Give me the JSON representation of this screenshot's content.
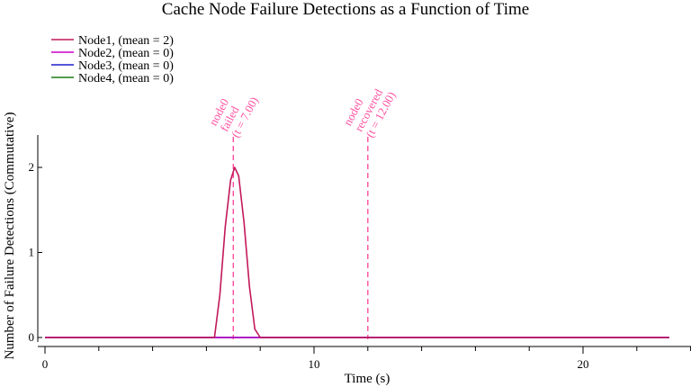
{
  "chart_data": {
    "type": "line",
    "title": "Cache Node Failure Detections as a Function of Time",
    "xlabel": "Time (s)",
    "ylabel": "Number of Failure Detections (Commutative)",
    "xlim": [
      0,
      24
    ],
    "ylim": [
      0,
      2.35
    ],
    "x_ticks": [
      0,
      10,
      20
    ],
    "x_tick_labels": [
      "0",
      "10",
      "20"
    ],
    "x_minor_ticks": [
      2,
      4,
      6,
      8,
      12,
      14,
      16,
      18,
      22,
      24
    ],
    "y_ticks": [
      0,
      1,
      2
    ],
    "y_tick_labels": [
      "0",
      "1",
      "2"
    ],
    "legend_position": "top-left",
    "grid": false,
    "series": [
      {
        "name": "Node1, (mean = 2)",
        "color": "#c2185b",
        "x": [
          0,
          6.3,
          6.5,
          6.7,
          6.9,
          7.05,
          7.2,
          7.4,
          7.6,
          7.8,
          8.0,
          23.2
        ],
        "y": [
          0,
          0,
          0.5,
          1.3,
          1.85,
          2.0,
          1.9,
          1.35,
          0.6,
          0.1,
          0,
          0
        ]
      },
      {
        "name": "Node2, (mean = 0)",
        "color": "#cc00cc",
        "x": [
          0,
          23.2
        ],
        "y": [
          0,
          0
        ]
      },
      {
        "name": "Node3, (mean = 0)",
        "color": "#1f1fcc",
        "x": [
          0,
          23.2
        ],
        "y": [
          0,
          0
        ]
      },
      {
        "name": "Node4, (mean = 0)",
        "color": "#1a7a1a",
        "x": [
          0,
          23.2
        ],
        "y": [
          0,
          0
        ]
      }
    ],
    "annotations": [
      {
        "x": 7.0,
        "lines": [
          "node0",
          "failed",
          "(t = 7.00)"
        ],
        "color": "#ff4fa0"
      },
      {
        "x": 12.0,
        "lines": [
          "node0",
          "recovered",
          "(t = 12.00)"
        ],
        "color": "#ff4fa0"
      }
    ]
  }
}
